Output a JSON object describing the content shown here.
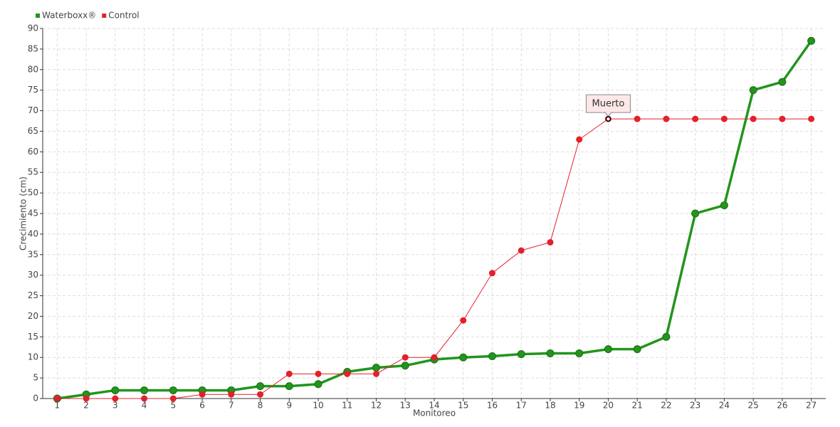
{
  "chart_data": {
    "type": "line",
    "xlabel": "Monitoreo",
    "ylabel": "Crecimiento (cm)",
    "x": [
      1,
      2,
      3,
      4,
      5,
      6,
      7,
      8,
      9,
      10,
      11,
      12,
      13,
      14,
      15,
      16,
      17,
      18,
      19,
      20,
      21,
      22,
      23,
      24,
      25,
      26,
      27
    ],
    "xlim": [
      0.5,
      27.5
    ],
    "xticks": [
      1,
      2,
      3,
      4,
      5,
      6,
      7,
      8,
      9,
      10,
      11,
      12,
      13,
      14,
      15,
      16,
      17,
      18,
      19,
      20,
      21,
      22,
      23,
      24,
      25,
      26,
      27
    ],
    "ylim": [
      0,
      90
    ],
    "yticks": [
      0,
      5,
      10,
      15,
      20,
      25,
      30,
      35,
      40,
      45,
      50,
      55,
      60,
      65,
      70,
      75,
      80,
      85,
      90
    ],
    "grid": true,
    "legend": "top-left",
    "series": [
      {
        "name": "Waterboxx®",
        "color": "#22951c",
        "values": [
          0,
          1,
          2,
          2,
          2,
          2,
          2,
          3,
          3,
          3.5,
          6.5,
          7.5,
          8,
          9.5,
          10,
          10.3,
          10.8,
          11,
          11,
          12,
          12,
          15,
          45,
          47,
          75,
          77,
          87
        ]
      },
      {
        "name": "Control",
        "color": "#e3202b",
        "values": [
          0,
          0,
          0,
          0,
          0,
          1,
          1,
          1,
          6,
          6,
          6,
          6,
          10,
          10,
          19,
          30.5,
          36,
          38,
          63,
          68,
          68,
          68,
          68,
          68,
          68,
          68,
          68
        ]
      }
    ],
    "annotation": {
      "text": "Muerto",
      "x": 20,
      "y": 68
    }
  }
}
